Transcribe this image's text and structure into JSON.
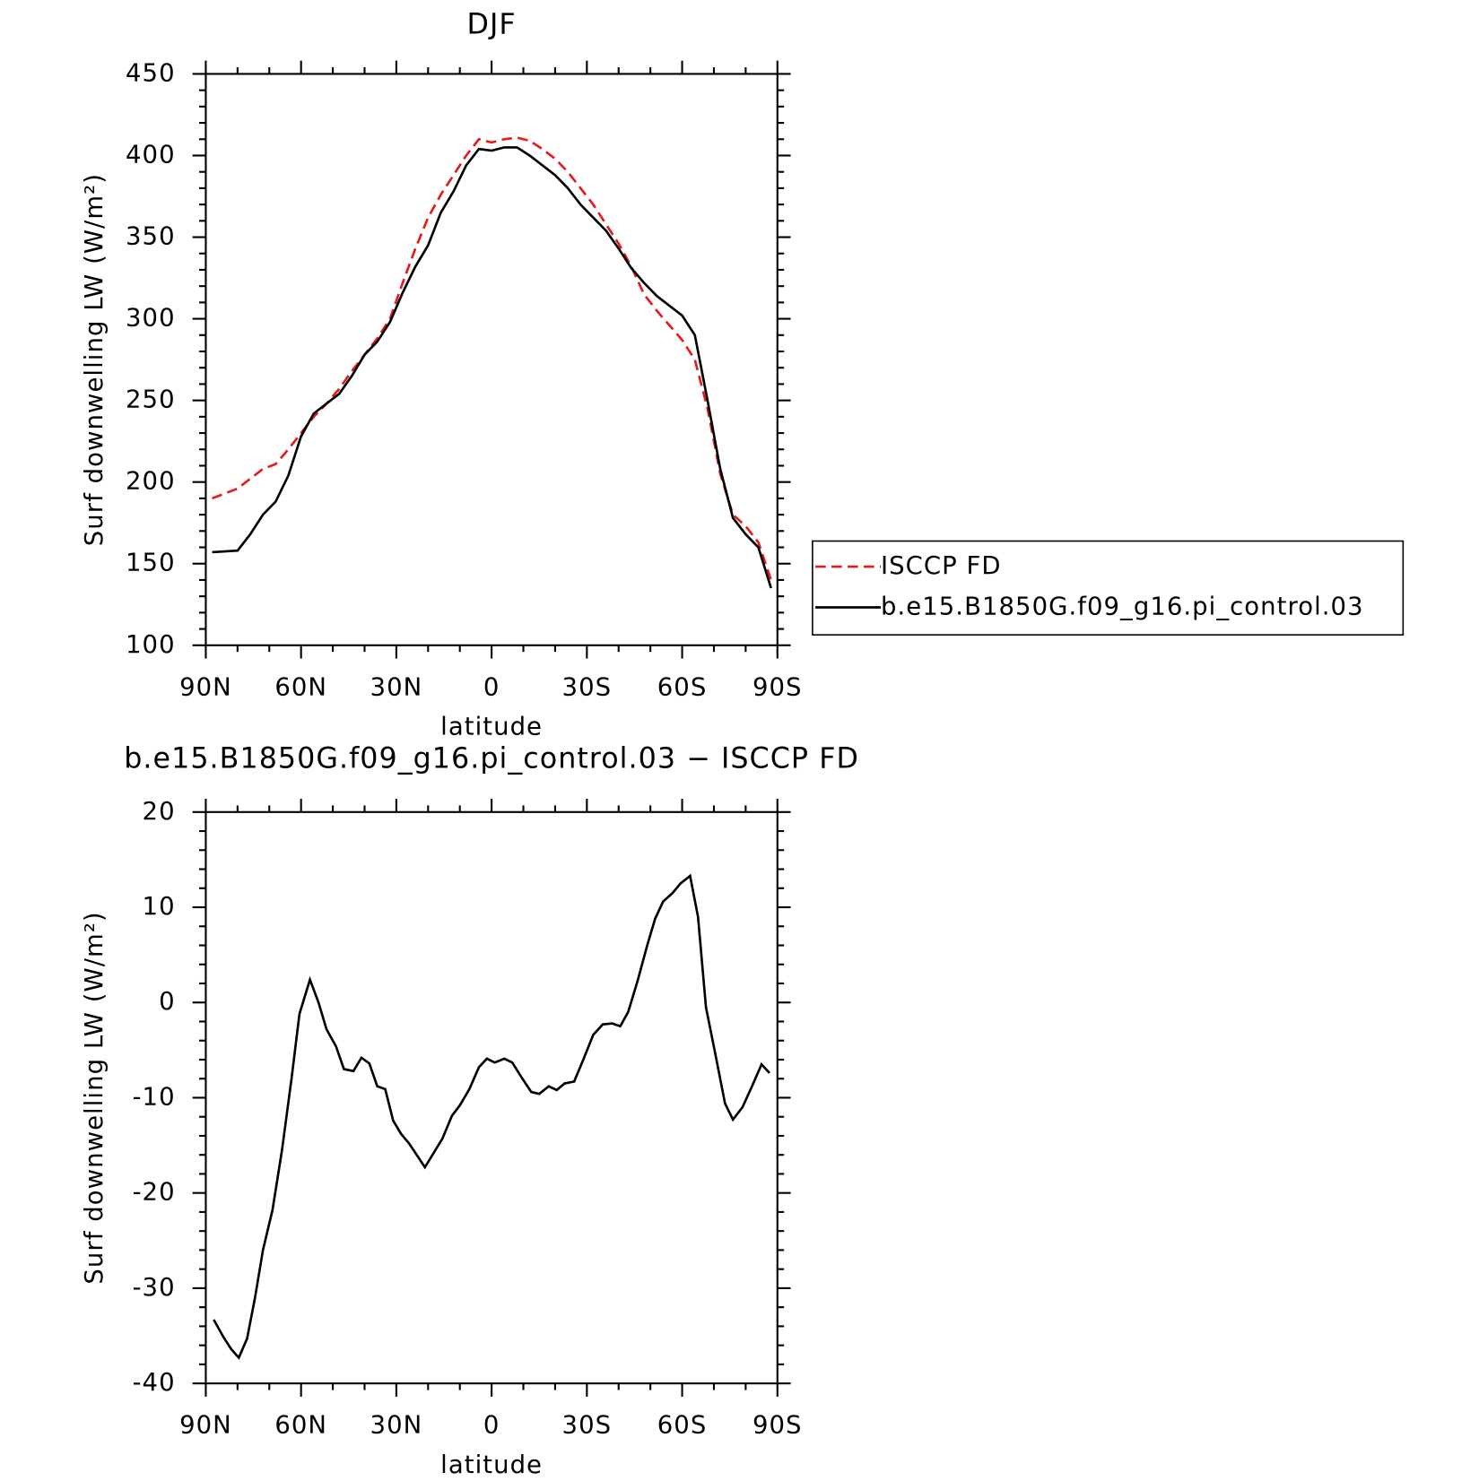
{
  "chart_data": [
    {
      "type": "line",
      "title": "DJF",
      "xlabel": "latitude",
      "ylabel": "Surf downwelling LW (W/m²)",
      "x": [
        88,
        84,
        80,
        76,
        72,
        68,
        64,
        60,
        56,
        52,
        48,
        44,
        40,
        36,
        32,
        28,
        24,
        20,
        16,
        12,
        8,
        4,
        0,
        -4,
        -8,
        -12,
        -16,
        -20,
        -24,
        -28,
        -32,
        -36,
        -40,
        -44,
        -48,
        -52,
        -56,
        -60,
        -64,
        -68,
        -72,
        -76,
        -80,
        -84,
        -88
      ],
      "series": [
        {
          "name": "ISCCP FD",
          "color": "#e41a1c",
          "dashed": true,
          "values": [
            190,
            193,
            196,
            202,
            208,
            211,
            220,
            230,
            240,
            248,
            257,
            268,
            278,
            288,
            300,
            322,
            343,
            362,
            376,
            388,
            400,
            410,
            408,
            410,
            411,
            409,
            404,
            398,
            390,
            380,
            370,
            358,
            346,
            332,
            315,
            305,
            296,
            287,
            275,
            245,
            205,
            180,
            173,
            163,
            140
          ]
        },
        {
          "name": "b.e15.B1850G.f09_g16.pi_control.03",
          "color": "#000000",
          "dashed": false,
          "values": [
            157,
            157.5,
            158,
            168,
            180,
            188,
            204,
            228,
            242,
            248,
            254,
            265,
            278,
            286,
            298,
            316,
            332,
            345,
            365,
            378,
            394,
            404,
            403,
            405,
            405,
            400,
            394,
            388,
            380,
            370,
            362,
            354,
            343,
            331,
            322,
            314,
            308,
            302,
            290,
            250,
            208,
            178,
            168,
            160,
            135
          ]
        }
      ],
      "xlim": [
        90,
        -90
      ],
      "xticks": [
        {
          "value": 90,
          "label": "90N"
        },
        {
          "value": 60,
          "label": "60N"
        },
        {
          "value": 30,
          "label": "30N"
        },
        0,
        {
          "value": -30,
          "label": "30S"
        },
        {
          "value": -60,
          "label": "60S"
        },
        {
          "value": -90,
          "label": "90S"
        }
      ],
      "ylim": [
        100,
        450
      ],
      "yticks": [
        100,
        150,
        200,
        250,
        300,
        350,
        400,
        450
      ],
      "legend": "right"
    },
    {
      "type": "line",
      "title": "b.e15.B1850G.f09_g16.pi_control.03 − ISCCP FD",
      "xlabel": "latitude",
      "ylabel": "Surf downwelling LW (W/m²)",
      "x": [
        87.5,
        84.5,
        82,
        79.6,
        77,
        74.5,
        72,
        69,
        66,
        63,
        60.5,
        57.2,
        54.5,
        52,
        49,
        46.5,
        43.5,
        41,
        38.5,
        36,
        33.5,
        31,
        28.5,
        26,
        21,
        15.5,
        12.5,
        10,
        7,
        4,
        1.5,
        -1,
        -4,
        -6.5,
        -9.5,
        -12.5,
        -15,
        -18,
        -20.5,
        -23,
        -26,
        -29,
        -32,
        -35,
        -38,
        -40.5,
        -43,
        -46,
        -49,
        -51.5,
        -54,
        -57,
        -59.5,
        -62.5,
        -65,
        -67.5,
        -70.5,
        -73.5,
        -76,
        -79,
        -82,
        -85,
        -87.5
      ],
      "values": [
        -33.3,
        -35.1,
        -36.4,
        -37.3,
        -35.3,
        -31,
        -26,
        -21.8,
        -15.5,
        -8,
        -1.2,
        2.4,
        0,
        -2.8,
        -4.6,
        -7,
        -7.2,
        -5.8,
        -6.4,
        -8.8,
        -9.1,
        -12.4,
        -13.8,
        -14.8,
        -17.3,
        -14.3,
        -11.9,
        -10.8,
        -9.1,
        -6.8,
        -5.9,
        -6.3,
        -5.9,
        -6.3,
        -7.9,
        -9.4,
        -9.6,
        -8.8,
        -9.2,
        -8.5,
        -8.3,
        -5.9,
        -3.4,
        -2.3,
        -2.2,
        -2.5,
        -1,
        2.3,
        6,
        8.8,
        10.6,
        11.5,
        12.5,
        13.3,
        9,
        -0.5,
        -5.5,
        -10.6,
        -12.3,
        -11,
        -8.8,
        -6.5,
        -7.4
      ],
      "color": "#000000",
      "xlim": [
        90,
        -90
      ],
      "xticks": [
        {
          "value": 90,
          "label": "90N"
        },
        {
          "value": 60,
          "label": "60N"
        },
        {
          "value": 30,
          "label": "30N"
        },
        0,
        {
          "value": -30,
          "label": "30S"
        },
        {
          "value": -60,
          "label": "60S"
        },
        {
          "value": -90,
          "label": "90S"
        }
      ],
      "ylim": [
        -40,
        20
      ],
      "yticks": [
        -40,
        -30,
        -20,
        -10,
        0,
        10,
        20
      ]
    }
  ]
}
